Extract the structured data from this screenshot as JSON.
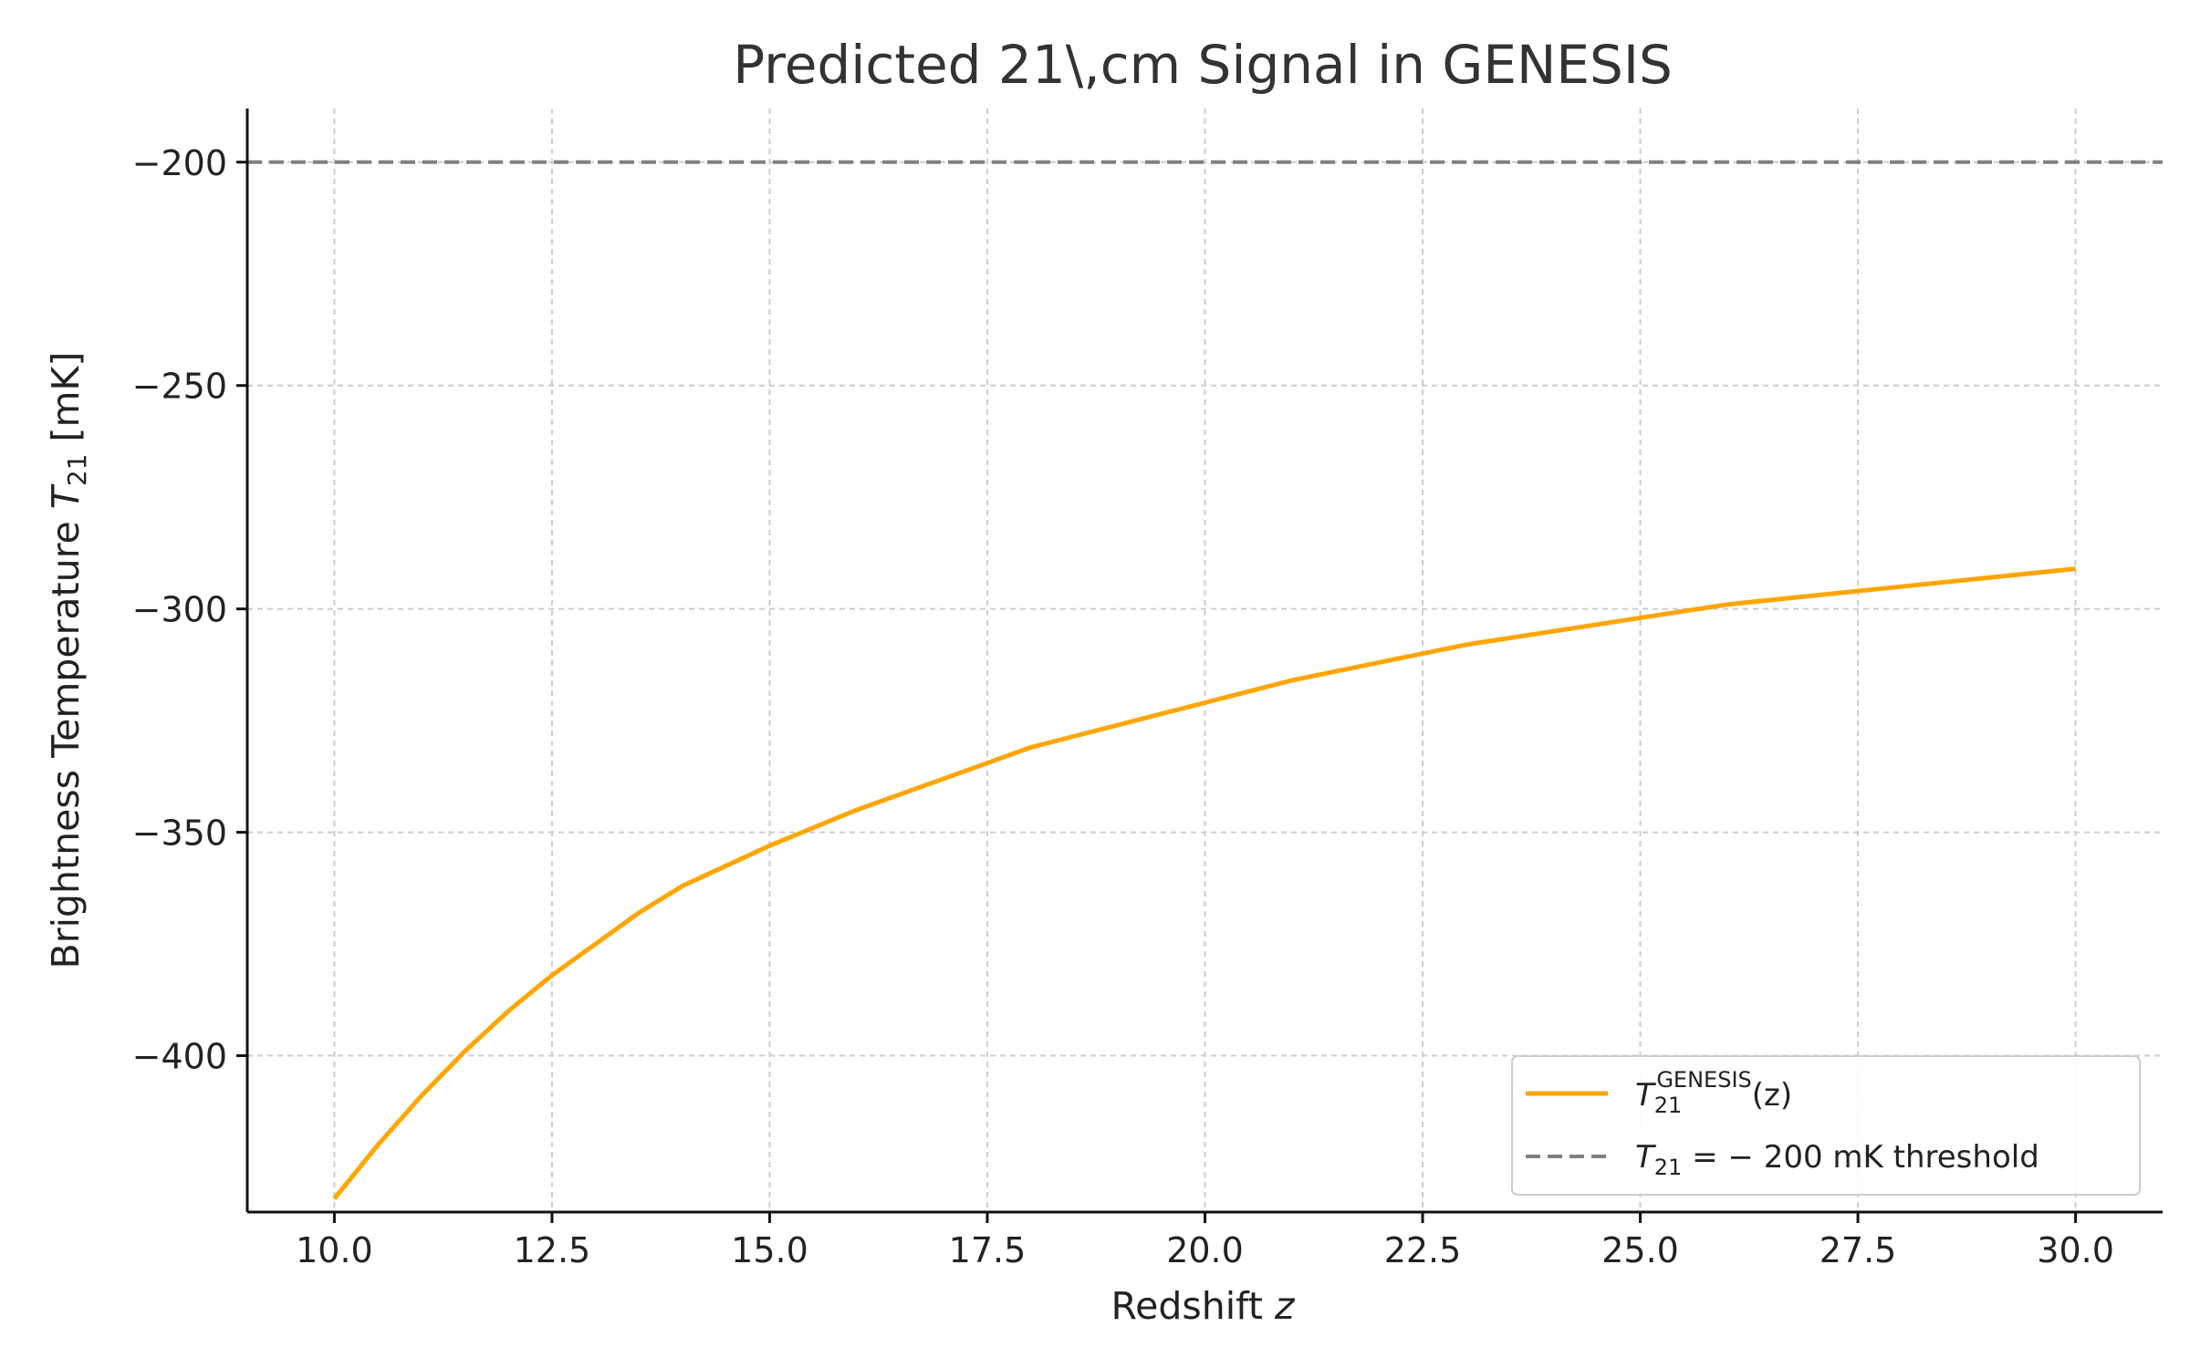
{
  "chart_data": {
    "type": "line",
    "title": "Predicted 21\\,cm Signal in GENESIS",
    "xlabel": {
      "main": "Redshift ",
      "var": "z"
    },
    "ylabel": {
      "main": "Brightness Temperature ",
      "var": "T",
      "sub": "21",
      "unit": " [mK]"
    },
    "xlim": [
      9.0,
      31.0
    ],
    "ylim": [
      -435,
      -188
    ],
    "x_ticks": [
      10.0,
      12.5,
      15.0,
      17.5,
      20.0,
      22.5,
      25.0,
      27.5,
      30.0
    ],
    "x_tick_labels": [
      "10.0",
      "12.5",
      "15.0",
      "17.5",
      "20.0",
      "22.5",
      "25.0",
      "27.5",
      "30.0"
    ],
    "y_ticks": [
      -200,
      -250,
      -300,
      -350,
      -400
    ],
    "y_tick_labels": [
      "−200",
      "−250",
      "−300",
      "−350",
      "−400"
    ],
    "grid": true,
    "legend_position": "lower-right",
    "series": [
      {
        "name": "T_21^GENESIS(z)",
        "color": "#ffa500",
        "style": "solid",
        "x": [
          10,
          10.5,
          11,
          11.5,
          12,
          12.5,
          13,
          13.5,
          14,
          15,
          16,
          17,
          18,
          19,
          20,
          21,
          22,
          23,
          24,
          25,
          26,
          27,
          28,
          29,
          30
        ],
        "y": [
          -432,
          -420,
          -409,
          -399,
          -390,
          -382,
          -375,
          -368,
          -362,
          -353,
          -345,
          -338,
          -331,
          -326,
          -321,
          -316,
          -312,
          -308,
          -305,
          -302,
          -299,
          -297,
          -295,
          -293,
          -291
        ]
      },
      {
        "name": "T21 = −200 mK threshold",
        "color": "#808080",
        "style": "dashed",
        "x": [
          9.0,
          31.0
        ],
        "y": [
          -200,
          -200
        ]
      }
    ],
    "legend": [
      {
        "symbol": "T",
        "sub": "21",
        "sup": "GENESIS",
        "rest": "(z)"
      },
      {
        "symbol": "T",
        "sub": "21",
        "rest": " = − 200 mK threshold"
      }
    ]
  }
}
